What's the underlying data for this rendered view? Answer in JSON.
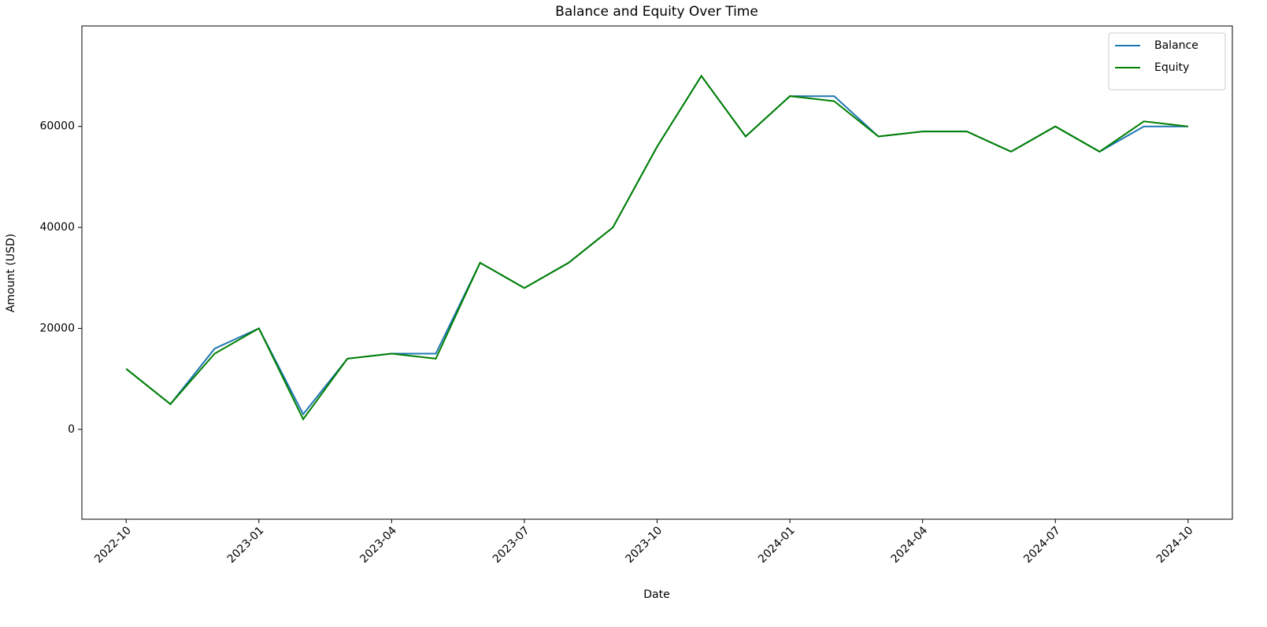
{
  "chart_data": {
    "type": "line",
    "title": "Balance and Equity Over Time",
    "xlabel": "Date",
    "ylabel": "Amount (USD)",
    "x": [
      "2022-10",
      "2022-11",
      "2022-12",
      "2023-01",
      "2023-02",
      "2023-03",
      "2023-04",
      "2023-05",
      "2023-06",
      "2023-07",
      "2023-08",
      "2023-09",
      "2023-10",
      "2023-11",
      "2023-12",
      "2024-01",
      "2024-02",
      "2024-03",
      "2024-04",
      "2024-05",
      "2024-06",
      "2024-07",
      "2024-08",
      "2024-09",
      "2024-10"
    ],
    "series": [
      {
        "name": "Balance",
        "color": "#1f77b4",
        "values": [
          12000,
          5000,
          16000,
          20000,
          3000,
          14000,
          15000,
          15000,
          33000,
          28000,
          33000,
          40000,
          56000,
          70000,
          58000,
          66000,
          66000,
          58000,
          59000,
          59000,
          55000,
          60000,
          55000,
          60000,
          60000
        ]
      },
      {
        "name": "Equity",
        "color": "#008000",
        "values": [
          12000,
          5000,
          15000,
          20000,
          2000,
          14000,
          15000,
          14000,
          33000,
          28000,
          33000,
          40000,
          56000,
          70000,
          58000,
          66000,
          65000,
          58000,
          59000,
          59000,
          55000,
          60000,
          55000,
          61000,
          60000
        ]
      }
    ],
    "xlim": [
      "2022-09",
      "2024-11"
    ],
    "xticks": [
      "2022-10",
      "2023-01",
      "2023-04",
      "2023-07",
      "2023-10",
      "2024-01",
      "2024-04",
      "2024-07",
      "2024-10"
    ],
    "ylim": [
      -17800,
      79900
    ],
    "yticks": [
      0,
      20000,
      40000,
      60000
    ],
    "grid": false,
    "legend": "upper right"
  }
}
